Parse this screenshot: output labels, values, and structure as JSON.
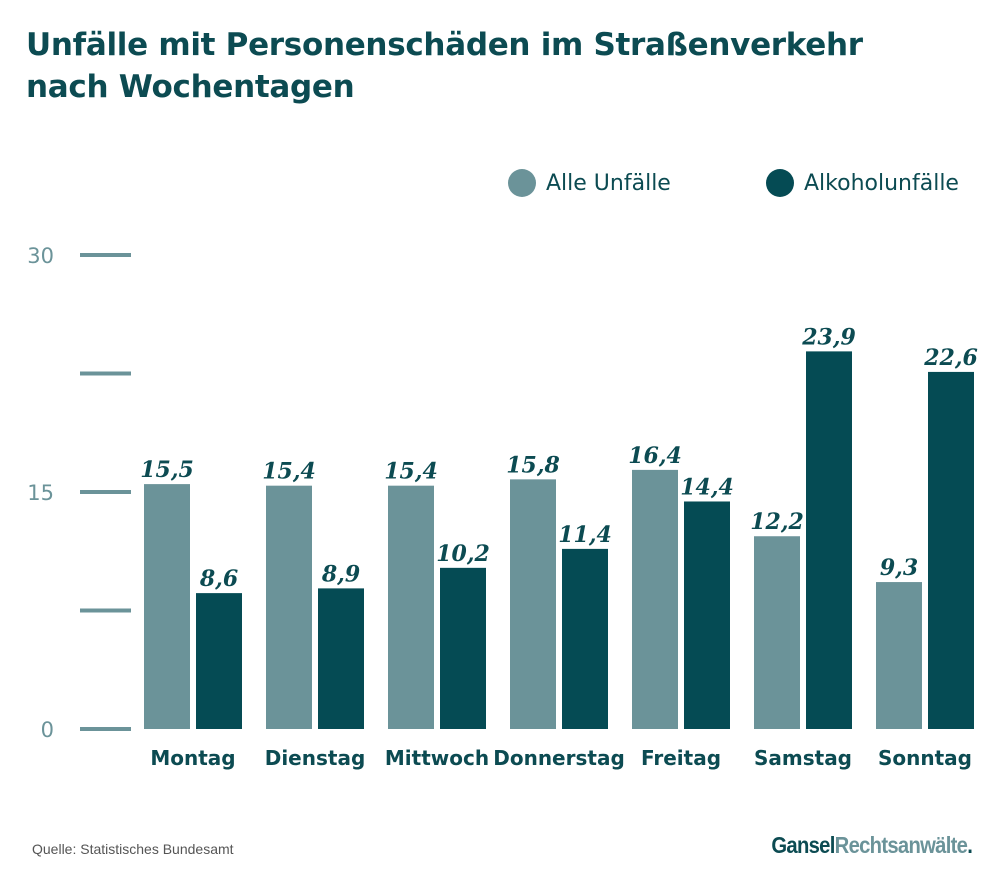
{
  "title": "Unfälle mit Personenschäden im Straßenverkehr nach Wochentagen",
  "legend": [
    {
      "label": "Alle Unfälle",
      "color": "#6b9399"
    },
    {
      "label": "Alkoholunfälle",
      "color": "#054b54"
    }
  ],
  "source": "Quelle: Statistisches Bundesamt",
  "brand": {
    "part1": "Gansel",
    "part2": "Rechtsanwälte",
    "part3": "."
  },
  "chart_data": {
    "type": "bar",
    "title": "Unfälle mit Personenschäden im Straßenverkehr nach Wochentagen",
    "categories": [
      "Montag",
      "Dienstag",
      "Mittwoch",
      "Donnerstag",
      "Freitag",
      "Samstag",
      "Sonntag"
    ],
    "series": [
      {
        "name": "Alle Unfälle",
        "color": "#6b9399",
        "values": [
          15.5,
          15.4,
          15.4,
          15.8,
          16.4,
          12.2,
          9.3
        ],
        "labels": [
          "15,5",
          "15,4",
          "15,4",
          "15,8",
          "16,4",
          "12,2",
          "9,3"
        ]
      },
      {
        "name": "Alkoholunfälle",
        "color": "#054b54",
        "values": [
          8.6,
          8.9,
          10.2,
          11.4,
          14.4,
          23.9,
          22.6
        ],
        "labels": [
          "8,6",
          "8,9",
          "10,2",
          "11,4",
          "14,4",
          "23,9",
          "22,6"
        ]
      }
    ],
    "yticks": [
      0,
      7.5,
      15,
      22.5,
      30
    ],
    "ytick_labels": [
      "0",
      "",
      "15",
      "",
      "30"
    ],
    "ylim": [
      0,
      30
    ],
    "grid": false,
    "legend_position": "top-right",
    "xlabel": "",
    "ylabel": ""
  }
}
